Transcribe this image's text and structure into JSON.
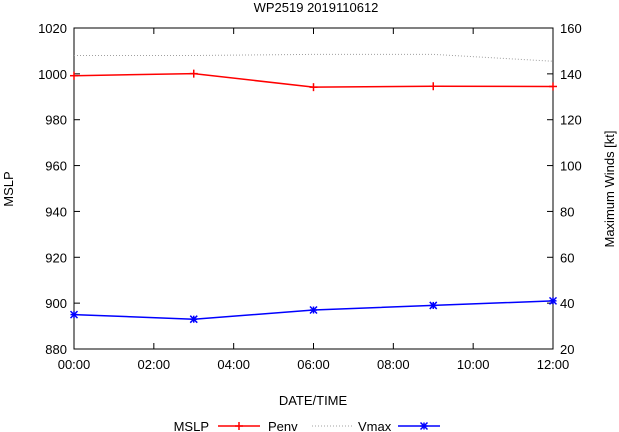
{
  "chart_data": {
    "type": "line",
    "title": "WP2519 2019110612",
    "xlabel": "DATE/TIME",
    "ylabel_left": "MSLP",
    "ylabel_right": "Maximum Winds [kt]",
    "x_ticks": [
      "00:00",
      "02:00",
      "04:00",
      "06:00",
      "08:00",
      "10:00",
      "12:00"
    ],
    "x_hours": [
      0,
      3,
      6,
      9,
      12
    ],
    "xlim": [
      0,
      12
    ],
    "ylim_left": [
      880,
      1020
    ],
    "yticks_left": [
      880,
      900,
      920,
      940,
      960,
      980,
      1000,
      1020
    ],
    "ylim_right": [
      20,
      160
    ],
    "yticks_right": [
      20,
      40,
      60,
      80,
      100,
      120,
      140,
      160
    ],
    "grid": false,
    "legend_placement": "bottom",
    "legend_title": "MSLP",
    "series": [
      {
        "name": "Penv",
        "axis": "left",
        "color": "#ff0000",
        "marker": "plus",
        "style": "solid",
        "values": [
          999.2,
          1000.1,
          994.2,
          994.6,
          994.5
        ]
      },
      {
        "name": "",
        "axis": "left",
        "color": "#a0a0a0",
        "marker": "none",
        "style": "dotted",
        "values": [
          1008.0,
          1008.0,
          1008.5,
          1008.5,
          1005.5
        ]
      },
      {
        "name": "Vmax",
        "axis": "right",
        "color": "#0000ff",
        "marker": "star",
        "style": "solid",
        "values": [
          35,
          33,
          37,
          39,
          41
        ]
      }
    ]
  }
}
